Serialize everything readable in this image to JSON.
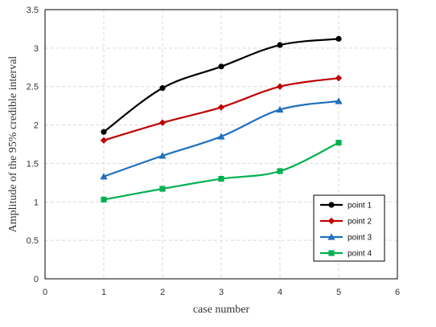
{
  "chart_data": {
    "type": "line",
    "title": "",
    "xlabel": "case number",
    "ylabel": "Amplitude of the 95% credible interval",
    "xlim": [
      0,
      6
    ],
    "ylim": [
      0,
      3.5
    ],
    "xticks": [
      0,
      1,
      2,
      3,
      4,
      5,
      6
    ],
    "yticks": [
      0,
      0.5,
      1,
      1.5,
      2,
      2.5,
      3,
      3.5
    ],
    "xtick_labels": [
      "0",
      "1",
      "2",
      "3",
      "4",
      "5",
      "6"
    ],
    "ytick_labels": [
      "0",
      "0.5",
      "1",
      "1.5",
      "2",
      "2.5",
      "3",
      "3.5"
    ],
    "grid": true,
    "smooth": true,
    "legend_position": "bottom-right",
    "x": [
      1,
      2,
      3,
      4,
      5
    ],
    "series": [
      {
        "name": "point 1",
        "values": [
          1.91,
          2.48,
          2.76,
          3.04,
          3.12
        ],
        "color": "#000000",
        "marker": "circle"
      },
      {
        "name": "point 2",
        "values": [
          1.8,
          2.03,
          2.23,
          2.5,
          2.61
        ],
        "color": "#c00000",
        "marker": "diamond"
      },
      {
        "name": "point 3",
        "values": [
          1.33,
          1.6,
          1.85,
          2.2,
          2.31
        ],
        "color": "#1f6fbf",
        "marker": "triangle"
      },
      {
        "name": "point 4",
        "values": [
          1.03,
          1.17,
          1.3,
          1.4,
          1.77
        ],
        "color": "#00b050",
        "marker": "square"
      }
    ]
  }
}
